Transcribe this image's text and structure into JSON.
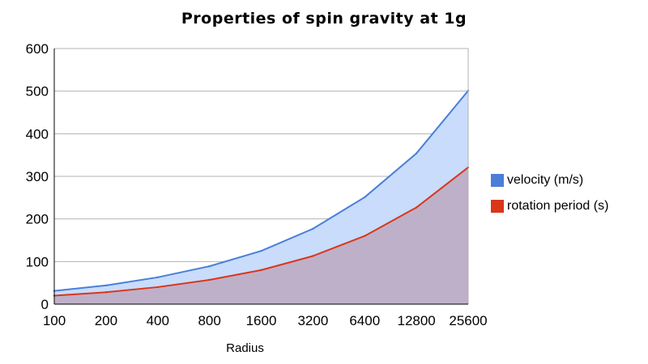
{
  "chart_data": {
    "type": "area",
    "title": "Properties of spin gravity at 1g",
    "xlabel": "Radius",
    "ylabel": "",
    "categories": [
      "100",
      "200",
      "400",
      "800",
      "1600",
      "3200",
      "6400",
      "12800",
      "25600"
    ],
    "ylim": [
      0,
      600
    ],
    "yticks": [
      "0",
      "100",
      "200",
      "300",
      "400",
      "500",
      "600"
    ],
    "grid": true,
    "legend_position": "right",
    "series": [
      {
        "name": "velocity (m/s)",
        "values": [
          31,
          44,
          63,
          89,
          125,
          177,
          251,
          354,
          501
        ],
        "line_color": "#4a7fd9",
        "fill_color": "#c9dcfb"
      },
      {
        "name": "rotation period (s)",
        "values": [
          20,
          28,
          40,
          57,
          80,
          113,
          160,
          227,
          321
        ],
        "line_color": "#d9361a",
        "fill_color": "#bfb0c9"
      }
    ]
  }
}
